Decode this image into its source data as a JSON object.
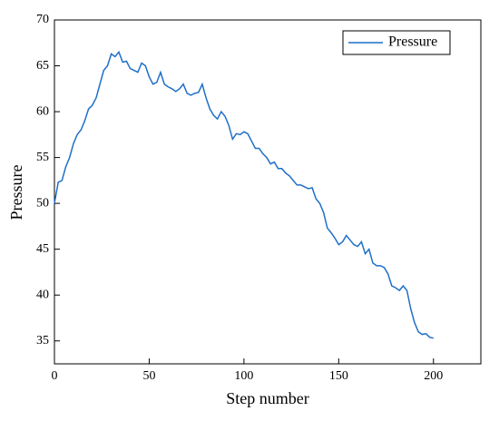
{
  "chart_data": {
    "type": "line",
    "x_label": "Step number",
    "y_label": "Pressure",
    "x": [
      0,
      2,
      4,
      6,
      8,
      10,
      12,
      14,
      16,
      18,
      20,
      22,
      24,
      26,
      28,
      30,
      32,
      34,
      36,
      38,
      40,
      42,
      44,
      46,
      48,
      50,
      52,
      54,
      56,
      58,
      60,
      62,
      64,
      66,
      68,
      70,
      72,
      74,
      76,
      78,
      80,
      82,
      84,
      86,
      88,
      90,
      92,
      94,
      96,
      98,
      100,
      102,
      104,
      106,
      108,
      110,
      112,
      114,
      116,
      118,
      120,
      122,
      124,
      126,
      128,
      130,
      132,
      134,
      136,
      138,
      140,
      142,
      144,
      146,
      148,
      150,
      152,
      154,
      156,
      158,
      160,
      162,
      164,
      166,
      168,
      170,
      172,
      174,
      176,
      178,
      180,
      182,
      184,
      186,
      188,
      190,
      192,
      194,
      196,
      198,
      200
    ],
    "series": [
      {
        "name": "Pressure",
        "color": "#1f6fc8",
        "values": [
          50,
          52.3,
          52.5,
          54,
          55,
          56.5,
          57.5,
          58,
          59,
          60.3,
          60.7,
          61.5,
          63,
          64.5,
          65,
          66.3,
          66,
          66.5,
          65.4,
          65.5,
          64.7,
          64.5,
          64.3,
          65.3,
          65,
          63.8,
          63,
          63.2,
          64.3,
          63,
          62.7,
          62.5,
          62.2,
          62.5,
          63,
          62,
          61.8,
          62,
          62.1,
          63,
          61.5,
          60.3,
          59.6,
          59.2,
          60,
          59.5,
          58.5,
          57,
          57.6,
          57.5,
          57.8,
          57.6,
          56.8,
          56,
          56,
          55.4,
          55,
          54.3,
          54.5,
          53.8,
          53.8,
          53.3,
          53,
          52.5,
          52,
          52,
          51.8,
          51.6,
          51.7,
          50.5,
          50,
          49,
          47.3,
          46.8,
          46.2,
          45.5,
          45.8,
          46.5,
          46,
          45.5,
          45.3,
          45.8,
          44.5,
          45,
          43.5,
          43.2,
          43.2,
          43,
          42.3,
          41,
          40.8,
          40.5,
          41,
          40.5,
          38.5,
          37,
          36,
          35.7,
          35.8,
          35.4,
          35.3
        ]
      }
    ],
    "xlim": [
      0,
      225
    ],
    "xticks": [
      0,
      50,
      100,
      150,
      200
    ],
    "ylim": [
      32.5,
      70
    ],
    "yticks": [
      35,
      40,
      45,
      50,
      55,
      60,
      65,
      70
    ],
    "legend": "upper right",
    "grid": false
  }
}
